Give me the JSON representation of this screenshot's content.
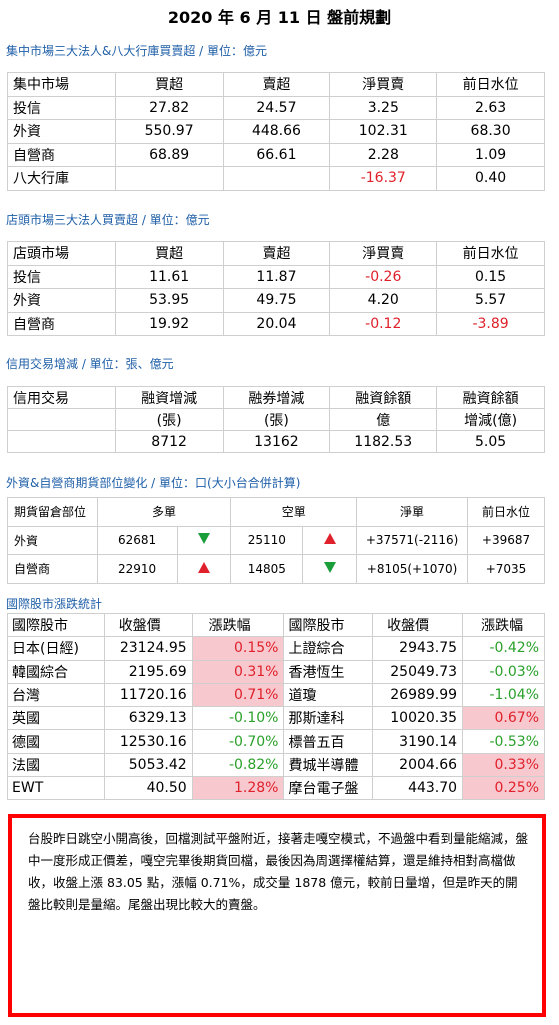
{
  "title": "2020 年 6 月 11 日  盤前規劃",
  "colors": {
    "accent_blue": "#1f5fa8",
    "red": "#e0202a",
    "green": "#2aa12a",
    "pink_highlight": "#f7c9cf",
    "box_border": "#ff0000"
  },
  "sections": {
    "s1": "集中市場三大法人&八大行庫買賣超 / 單位：億元",
    "s2": "店頭市場三大法人買賣超 / 單位：億元",
    "s3": "信用交易增減 / 單位：張、億元",
    "s4": "外資&自營商期貨部位變化 / 單位：口(大小台合併計算)",
    "s5": "國際股市漲跌統計"
  },
  "table1": {
    "headers": [
      "集中市場",
      "買超",
      "賣超",
      "淨買賣",
      "前日水位"
    ],
    "rows": [
      [
        "投信",
        "27.82",
        "24.57",
        "3.25",
        "2.63"
      ],
      [
        "外資",
        "550.97",
        "448.66",
        "102.31",
        "68.30"
      ],
      [
        "自營商",
        "68.89",
        "66.61",
        "2.28",
        "1.09"
      ],
      [
        "八大行庫",
        "",
        "",
        "-16.37",
        "0.40"
      ]
    ]
  },
  "table2": {
    "headers": [
      "店頭市場",
      "買超",
      "賣超",
      "淨買賣",
      "前日水位"
    ],
    "rows": [
      [
        "投信",
        "11.61",
        "11.87",
        "-0.26",
        "0.15"
      ],
      [
        "外資",
        "53.95",
        "49.75",
        "4.20",
        "5.57"
      ],
      [
        "自營商",
        "19.92",
        "20.04",
        "-0.12",
        "-3.89"
      ]
    ]
  },
  "table3": {
    "headers": [
      "信用交易",
      "融資增減",
      "融券增減",
      "融資餘額",
      "融資餘額"
    ],
    "subheaders": [
      "",
      "(張)",
      "(張)",
      "億",
      "增減(億)"
    ],
    "row": [
      "",
      "8712",
      "13162",
      "1182.53",
      "5.05"
    ]
  },
  "table4": {
    "headers": [
      "期貨留倉部位",
      "多單",
      "空單",
      "淨單",
      "前日水位"
    ],
    "rows": [
      {
        "name": "外資",
        "long": "62681",
        "long_dir": "down",
        "short": "25110",
        "short_dir": "up",
        "net": "+37571(-2116)",
        "prev": "+39687"
      },
      {
        "name": "自營商",
        "long": "22910",
        "long_dir": "up",
        "short": "14805",
        "short_dir": "down",
        "net": "+8105(+1070)",
        "prev": "+7035"
      }
    ]
  },
  "table5": {
    "headers": [
      "國際股市",
      "收盤價",
      "漲跌幅",
      "國際股市",
      "收盤價",
      "漲跌幅"
    ],
    "rows": [
      [
        "日本(日經)",
        "23124.95",
        "0.15%",
        "上證綜合",
        "2943.75",
        "-0.42%"
      ],
      [
        "韓國綜合",
        "2195.69",
        "0.31%",
        "香港恆生",
        "25049.73",
        "-0.03%"
      ],
      [
        "台灣",
        "11720.16",
        "0.71%",
        "道瓊",
        "26989.99",
        "-1.04%"
      ],
      [
        "英國",
        "6329.13",
        "-0.10%",
        "那斯達科",
        "10020.35",
        "0.67%"
      ],
      [
        "德國",
        "12530.16",
        "-0.70%",
        "標普五百",
        "3190.14",
        "-0.53%"
      ],
      [
        "法國",
        "5053.42",
        "-0.82%",
        "費城半導體",
        "2004.66",
        "0.33%"
      ],
      [
        "EWT",
        "40.50",
        "1.28%",
        "摩台電子盤",
        "443.70",
        "0.25%"
      ]
    ]
  },
  "comment": "台股昨日跳空小開高後，回檔測試平盤附近，接著走嘎空模式，不過盤中看到量能縮減，盤中一度形成正價差，嘎空完畢後期貨回檔，最後因為周選擇權結算，還是維持相對高檔做收，收盤上漲 83.05 點，漲幅 0.71%，成交量 1878 億元，較前日量增，但是昨天的開盤比較則是量縮。尾盤出現比較大的賣盤。"
}
